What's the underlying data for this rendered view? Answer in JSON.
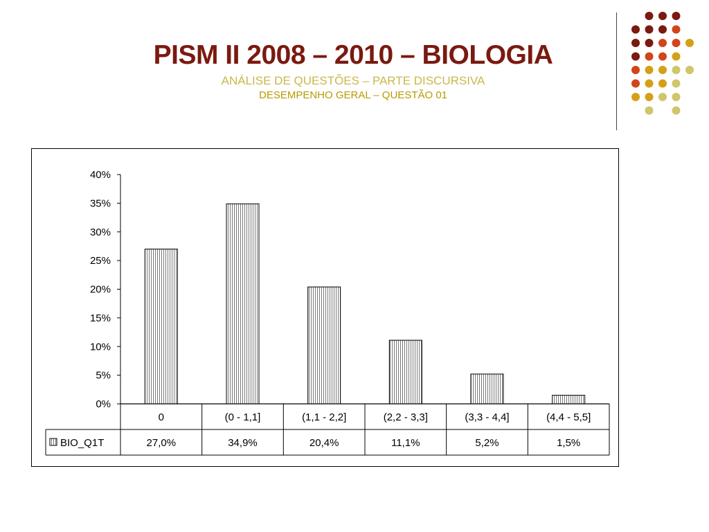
{
  "slide": {
    "title": "PISM II 2008 – 2010 – BIOLOGIA",
    "subtitle": "ANÁLISE DE QUESTÕES – PARTE DISCURSIVA",
    "subtitle2": "DESEMPENHO GERAL – QUESTÃO 01"
  },
  "decoration": {
    "dot_colors": [
      "#7a1a10",
      "#d2451a",
      "#d4a017",
      "#cfc56a"
    ]
  },
  "chart_data": {
    "type": "bar",
    "categories": [
      "0",
      "(0 - 1,1]",
      "(1,1 - 2,2]",
      "(2,2 - 3,3]",
      "(3,3 - 4,4]",
      "(4,4 - 5,5]"
    ],
    "series": [
      {
        "name": "BIO_Q1T",
        "values": [
          27.0,
          34.9,
          20.4,
          11.1,
          5.2,
          1.5
        ],
        "labels": [
          "27,0%",
          "34,9%",
          "20,4%",
          "11,1%",
          "5,2%",
          "1,5%"
        ]
      }
    ],
    "yticks": [
      "0%",
      "5%",
      "10%",
      "15%",
      "20%",
      "25%",
      "30%",
      "35%",
      "40%"
    ],
    "ylim": [
      0,
      40
    ],
    "bar_pattern": "vertical-hatch",
    "legend": "data-table"
  }
}
